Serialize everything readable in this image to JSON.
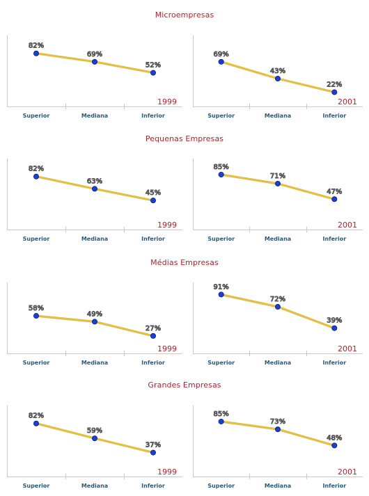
{
  "sections": [
    {
      "title": "Microempresas"
    },
    {
      "title": "Pequenas Empresas"
    },
    {
      "title": "Médias Empresas"
    },
    {
      "title": "Grandes Empresas"
    }
  ],
  "chart_data": [
    {
      "type": "line",
      "group": "Microempresas",
      "year": "1999",
      "categories": [
        "Superior",
        "Mediana",
        "Inferior"
      ],
      "values": [
        82,
        69,
        52
      ],
      "labels": [
        "82%",
        "69%",
        "52%"
      ],
      "color": "#f2c318",
      "marker_color": "#1a3fd9"
    },
    {
      "type": "line",
      "group": "Microempresas",
      "year": "2001",
      "categories": [
        "Superior",
        "Mediana",
        "Inferior"
      ],
      "values": [
        69,
        43,
        22
      ],
      "labels": [
        "69%",
        "43%",
        "22%"
      ],
      "color": "#f2c318",
      "marker_color": "#1a3fd9"
    },
    {
      "type": "line",
      "group": "Pequenas Empresas",
      "year": "1999",
      "categories": [
        "Superior",
        "Mediana",
        "Inferior"
      ],
      "values": [
        82,
        63,
        45
      ],
      "labels": [
        "82%",
        "63%",
        "45%"
      ],
      "color": "#f2c318",
      "marker_color": "#1a3fd9"
    },
    {
      "type": "line",
      "group": "Pequenas Empresas",
      "year": "2001",
      "categories": [
        "Superior",
        "Mediana",
        "Inferior"
      ],
      "values": [
        85,
        71,
        47
      ],
      "labels": [
        "85%",
        "71%",
        "47%"
      ],
      "color": "#f2c318",
      "marker_color": "#1a3fd9"
    },
    {
      "type": "line",
      "group": "Médias Empresas",
      "year": "1999",
      "categories": [
        "Superior",
        "Mediana",
        "Inferior"
      ],
      "values": [
        58,
        49,
        27
      ],
      "labels": [
        "58%",
        "49%",
        "27%"
      ],
      "color": "#f2c318",
      "marker_color": "#1a3fd9"
    },
    {
      "type": "line",
      "group": "Médias Empresas",
      "year": "2001",
      "categories": [
        "Superior",
        "Mediana",
        "Inferior"
      ],
      "values": [
        91,
        72,
        39
      ],
      "labels": [
        "91%",
        "72%",
        "39%"
      ],
      "color": "#f2c318",
      "marker_color": "#1a3fd9"
    },
    {
      "type": "line",
      "group": "Grandes Empresas",
      "year": "1999",
      "categories": [
        "Superior",
        "Mediana",
        "Inferior"
      ],
      "values": [
        82,
        59,
        37
      ],
      "labels": [
        "82%",
        "59%",
        "37%"
      ],
      "color": "#f2c318",
      "marker_color": "#1a3fd9"
    },
    {
      "type": "line",
      "group": "Grandes Empresas",
      "year": "2001",
      "categories": [
        "Superior",
        "Mediana",
        "Inferior"
      ],
      "values": [
        85,
        73,
        48
      ],
      "labels": [
        "85%",
        "73%",
        "48%"
      ],
      "color": "#f2c318",
      "marker_color": "#1a3fd9"
    }
  ]
}
